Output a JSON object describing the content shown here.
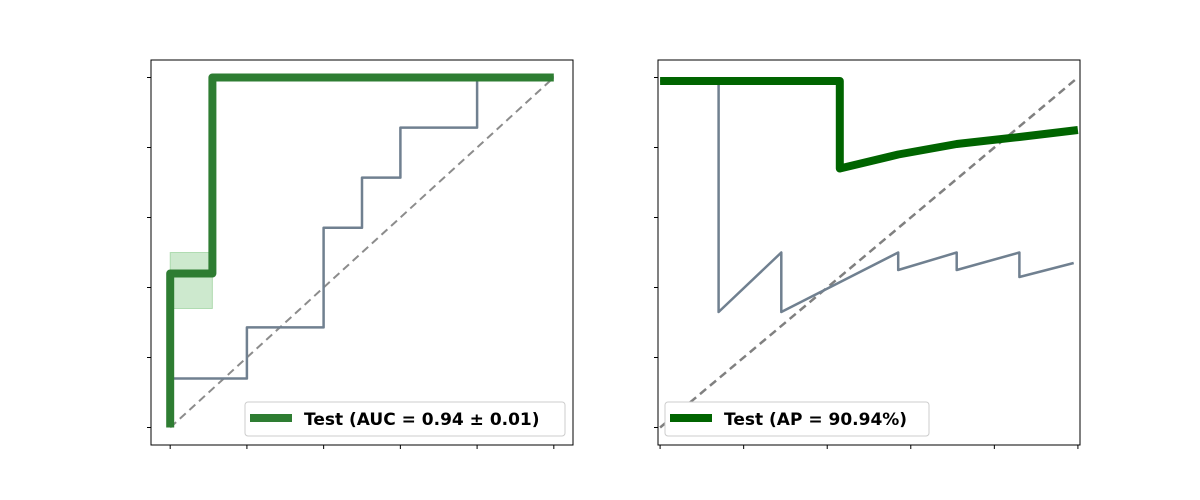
{
  "chart_data": [
    {
      "type": "line",
      "title": "",
      "xlabel": "",
      "ylabel": "",
      "xlim": [
        -0.05,
        1.05
      ],
      "ylim": [
        -0.05,
        1.05
      ],
      "grid": false,
      "legend_position": "lower-right",
      "xticks": [
        0,
        0.2,
        0.4,
        0.6,
        0.8,
        1.0
      ],
      "yticks": [
        0,
        0.2,
        0.4,
        0.6,
        0.8,
        1.0
      ],
      "series": [
        {
          "name": "Test (AUC = 0.94 ± 0.01)",
          "color": "#2e7d32",
          "x": [
            0,
            0,
            0.11,
            0.11,
            1.0
          ],
          "y": [
            0,
            0.44,
            0.44,
            1.0,
            1.0
          ]
        },
        {
          "color": "#708090",
          "x": [
            0,
            0,
            0.2,
            0.2,
            0.4,
            0.4,
            0.5,
            0.5,
            0.6,
            0.6,
            0.8,
            0.8,
            1.0
          ],
          "y": [
            0,
            0.14,
            0.14,
            0.286,
            0.286,
            0.571,
            0.571,
            0.714,
            0.714,
            0.857,
            0.857,
            1.0,
            1.0
          ]
        },
        {
          "color": "#8c8c8c",
          "x": [
            0,
            1
          ],
          "y": [
            0,
            1
          ]
        }
      ],
      "band": {
        "color": "#4caf50",
        "x": [
          0,
          0.11
        ],
        "y": [
          0.34,
          0.5
        ]
      }
    },
    {
      "type": "line",
      "title": "",
      "xlabel": "",
      "ylabel": "",
      "xlim": [
        -0.005,
        1.005
      ],
      "ylim": [
        -0.05,
        1.05
      ],
      "grid": false,
      "legend_position": "lower-left",
      "xticks": [
        0,
        0.2,
        0.4,
        0.6,
        0.8,
        1.0
      ],
      "yticks": [
        0,
        0.2,
        0.4,
        0.6,
        0.8,
        1.0
      ],
      "series": [
        {
          "name": "Test (AP = 90.94%)",
          "color": "#006400",
          "x": [
            0,
            0.43,
            0.43,
            0.57,
            0.71,
            0.86,
            1.0
          ],
          "y": [
            0.99,
            0.99,
            0.74,
            0.78,
            0.81,
            0.83,
            0.85
          ]
        },
        {
          "color": "#708090",
          "x": [
            0,
            0.14,
            0.14,
            0.29,
            0.29,
            0.57,
            0.57,
            0.71,
            0.71,
            0.86,
            0.86,
            0.99
          ],
          "y": [
            0.99,
            0.99,
            0.33,
            0.5,
            0.33,
            0.5,
            0.45,
            0.5,
            0.45,
            0.5,
            0.43,
            0.47
          ]
        },
        {
          "color": "#808080",
          "x": [
            0,
            1
          ],
          "y": [
            0,
            1
          ]
        }
      ]
    }
  ]
}
